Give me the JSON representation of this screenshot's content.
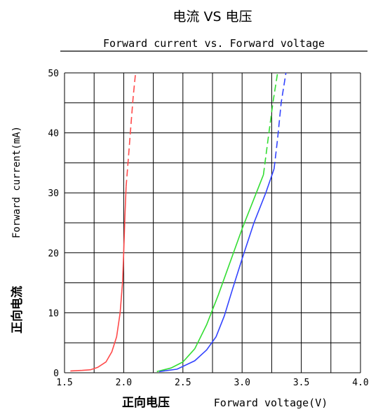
{
  "chart_data": {
    "type": "line",
    "title": "电流 VS 电压",
    "subtitle": "Forward current vs. Forward voltage",
    "xlabel_cn": "正向电压",
    "xlabel": "Forward voltage(V)",
    "ylabel_cn": "正向电流",
    "ylabel": "Forward current(mA)",
    "xlim": [
      1.5,
      4.0
    ],
    "ylim": [
      0,
      50
    ],
    "grid": true,
    "x_ticks": [
      "1.5",
      "2.0",
      "2.5",
      "3.0",
      "3.5",
      "4.0"
    ],
    "y_ticks": [
      "0",
      "10",
      "20",
      "30",
      "40",
      "50"
    ],
    "series": [
      {
        "color": "#ff4a4a",
        "solid": [
          [
            1.55,
            0.3
          ],
          [
            1.65,
            0.4
          ],
          [
            1.72,
            0.5
          ],
          [
            1.78,
            0.9
          ],
          [
            1.85,
            1.8
          ],
          [
            1.9,
            3.5
          ],
          [
            1.94,
            6
          ],
          [
            1.97,
            10
          ],
          [
            1.99,
            15
          ],
          [
            2.0,
            20
          ],
          [
            2.01,
            26
          ],
          [
            2.02,
            31
          ]
        ],
        "dashed": [
          [
            2.02,
            31
          ],
          [
            2.04,
            36
          ],
          [
            2.06,
            41
          ],
          [
            2.08,
            46
          ],
          [
            2.1,
            50
          ]
        ]
      },
      {
        "color": "#33dd33",
        "solid": [
          [
            2.28,
            0.2
          ],
          [
            2.4,
            0.8
          ],
          [
            2.5,
            1.8
          ],
          [
            2.6,
            4
          ],
          [
            2.7,
            8
          ],
          [
            2.8,
            13
          ],
          [
            2.9,
            18.5
          ],
          [
            3.0,
            24
          ],
          [
            3.1,
            29
          ],
          [
            3.18,
            33
          ]
        ],
        "dashed": [
          [
            3.18,
            33
          ],
          [
            3.22,
            39
          ],
          [
            3.26,
            45
          ],
          [
            3.3,
            50
          ]
        ]
      },
      {
        "color": "#3344ff",
        "solid": [
          [
            2.3,
            0.2
          ],
          [
            2.45,
            0.6
          ],
          [
            2.6,
            2
          ],
          [
            2.7,
            3.8
          ],
          [
            2.78,
            6
          ],
          [
            2.85,
            9.5
          ],
          [
            2.92,
            14
          ],
          [
            3.0,
            19
          ],
          [
            3.1,
            25
          ],
          [
            3.2,
            30
          ],
          [
            3.27,
            34
          ]
        ],
        "dashed": [
          [
            3.27,
            34
          ],
          [
            3.3,
            39
          ],
          [
            3.33,
            45
          ],
          [
            3.37,
            50
          ]
        ]
      }
    ]
  }
}
